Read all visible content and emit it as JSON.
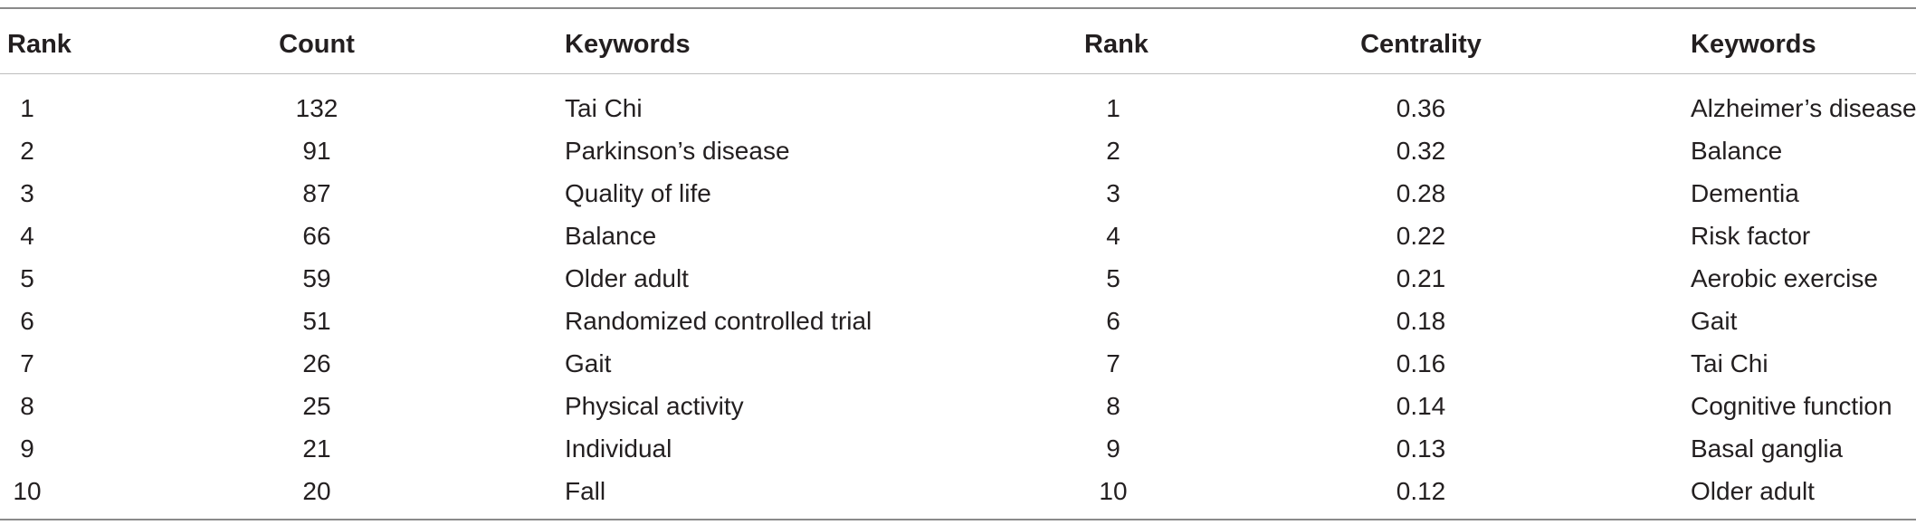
{
  "headers": {
    "rank_left": "Rank",
    "count": "Count",
    "keywords_left": "Keywords",
    "rank_right": "Rank",
    "centrality": "Centrality",
    "keywords_right": "Keywords"
  },
  "rows": [
    {
      "rank_left": "1",
      "count": "132",
      "keyword_left": "Tai Chi",
      "rank_right": "1",
      "centrality": "0.36",
      "keyword_right": "Alzheimer’s disease"
    },
    {
      "rank_left": "2",
      "count": "91",
      "keyword_left": "Parkinson’s disease",
      "rank_right": "2",
      "centrality": "0.32",
      "keyword_right": "Balance"
    },
    {
      "rank_left": "3",
      "count": "87",
      "keyword_left": "Quality of life",
      "rank_right": "3",
      "centrality": "0.28",
      "keyword_right": "Dementia"
    },
    {
      "rank_left": "4",
      "count": "66",
      "keyword_left": "Balance",
      "rank_right": "4",
      "centrality": "0.22",
      "keyword_right": "Risk factor"
    },
    {
      "rank_left": "5",
      "count": "59",
      "keyword_left": "Older adult",
      "rank_right": "5",
      "centrality": "0.21",
      "keyword_right": "Aerobic exercise"
    },
    {
      "rank_left": "6",
      "count": "51",
      "keyword_left": "Randomized controlled trial",
      "rank_right": "6",
      "centrality": "0.18",
      "keyword_right": "Gait"
    },
    {
      "rank_left": "7",
      "count": "26",
      "keyword_left": "Gait",
      "rank_right": "7",
      "centrality": "0.16",
      "keyword_right": "Tai Chi"
    },
    {
      "rank_left": "8",
      "count": "25",
      "keyword_left": "Physical activity",
      "rank_right": "8",
      "centrality": "0.14",
      "keyword_right": "Cognitive function"
    },
    {
      "rank_left": "9",
      "count": "21",
      "keyword_left": "Individual",
      "rank_right": "9",
      "centrality": "0.13",
      "keyword_right": "Basal ganglia"
    },
    {
      "rank_left": "10",
      "count": "20",
      "keyword_left": "Fall",
      "rank_right": "10",
      "centrality": "0.12",
      "keyword_right": "Older adult"
    }
  ]
}
